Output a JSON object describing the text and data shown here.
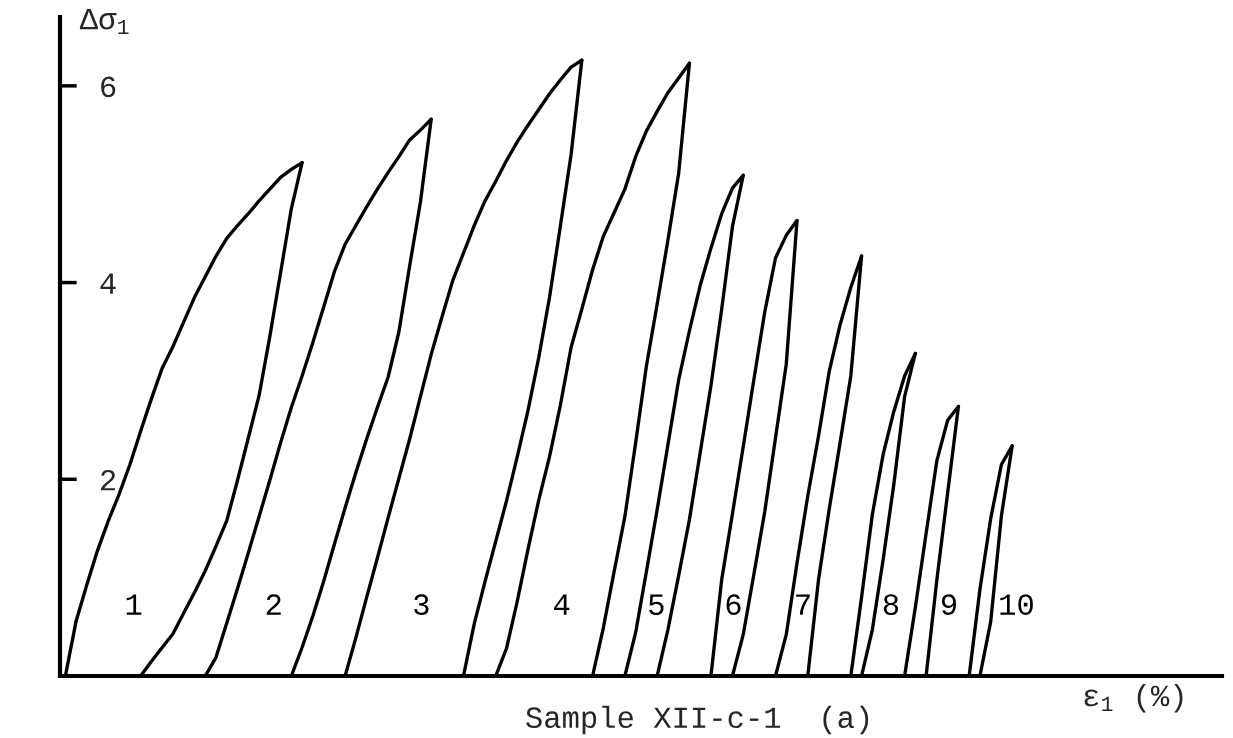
{
  "chart_data": {
    "type": "line",
    "ylabel": "Δσ$_{1}$",
    "xlabel": "ε$_{1}$ (%)",
    "annotations": [
      "Sample XII-c-1  (a)"
    ],
    "ylim": [
      0,
      6.7
    ],
    "yticks": [
      2,
      4,
      6
    ],
    "tick_labels": "y",
    "categories": [
      null,
      null,
      null,
      null,
      null,
      null,
      null,
      null,
      null,
      null,
      null,
      null,
      null,
      null,
      null,
      null,
      null,
      null,
      null,
      null,
      null,
      null,
      null,
      null,
      null,
      null,
      null,
      null,
      null,
      null,
      null,
      null,
      null,
      null,
      null,
      null,
      null,
      null,
      null,
      null,
      null,
      null,
      null,
      null,
      null,
      null,
      null,
      null,
      null,
      null,
      null,
      null,
      null,
      null,
      null,
      null,
      null,
      null,
      null,
      null,
      null,
      null,
      null,
      null,
      null,
      null,
      null,
      null,
      null,
      null,
      null,
      null,
      null,
      null,
      null,
      null,
      null,
      null,
      null,
      null,
      null,
      null,
      null,
      null,
      null,
      null,
      null,
      null,
      null,
      null,
      null,
      null,
      null,
      null,
      null,
      null,
      null,
      null,
      null,
      null,
      null,
      null,
      null,
      null,
      null,
      null,
      null,
      null
    ],
    "series": [
      {
        "name": "1",
        "color": "#000000",
        "values": [
          0,
          0.56,
          0.93,
          1.28,
          1.58,
          1.85,
          2.15,
          2.49,
          2.82,
          3.13,
          3.35,
          3.6,
          3.85,
          4.06,
          4.27,
          4.45,
          4.58,
          4.7,
          4.83,
          4.95,
          5.07,
          5.15,
          5.22,
          null,
          null,
          null,
          null,
          null,
          null,
          null,
          null,
          null,
          null,
          null,
          null,
          null,
          null,
          null,
          null,
          null,
          null,
          null,
          null,
          null,
          null,
          null,
          null,
          null,
          null,
          null,
          null,
          null,
          null,
          null,
          null,
          null,
          null,
          null,
          null,
          null,
          null,
          null,
          null,
          null,
          null,
          null,
          null,
          null,
          null,
          null,
          null,
          null,
          null,
          null,
          null,
          null,
          null,
          null,
          null,
          null,
          null,
          null,
          null,
          null,
          null,
          null,
          null,
          null,
          null,
          null,
          null,
          null,
          null,
          null,
          null,
          null,
          null,
          null,
          null,
          null,
          null,
          null,
          null,
          null,
          null,
          null,
          null,
          null
        ]
      },
      {
        "name": "2",
        "color": "#000000",
        "values": [
          null,
          null,
          null,
          null,
          null,
          null,
          null,
          null,
          null,
          null,
          null,
          null,
          null,
          0,
          0.19,
          0.54,
          0.89,
          1.25,
          1.62,
          1.99,
          2.37,
          2.73,
          3.05,
          3.39,
          3.75,
          4.11,
          4.39,
          4.58,
          4.77,
          4.95,
          5.12,
          5.28,
          5.45,
          5.55,
          5.66,
          null,
          null,
          null,
          null,
          null,
          null,
          null,
          null,
          null,
          null,
          null,
          null,
          null,
          null,
          null,
          null,
          null,
          null,
          null,
          null,
          null,
          null,
          null,
          null,
          null,
          null,
          null,
          null,
          null,
          null,
          null,
          null,
          null,
          null,
          null,
          null,
          null,
          null,
          null,
          null,
          null,
          null,
          null,
          null,
          null,
          null,
          null,
          null,
          null,
          null,
          null,
          null,
          null,
          null,
          null,
          null,
          null,
          null,
          null,
          null,
          null,
          null,
          null,
          null,
          null,
          null,
          null,
          null,
          null,
          null,
          null,
          null,
          null
        ]
      },
      {
        "name": "3",
        "color": "#000000",
        "values": [
          null,
          null,
          null,
          null,
          null,
          null,
          null,
          null,
          null,
          null,
          null,
          null,
          null,
          null,
          null,
          null,
          null,
          null,
          null,
          null,
          null,
          null,
          null,
          null,
          null,
          null,
          0,
          0.39,
          0.8,
          1.2,
          1.61,
          2.01,
          2.41,
          2.84,
          3.27,
          3.65,
          4.02,
          4.3,
          4.58,
          4.83,
          5.03,
          5.24,
          5.43,
          5.6,
          5.76,
          5.92,
          6.06,
          6.19,
          6.26,
          null,
          null,
          null,
          null,
          null,
          null,
          null,
          null,
          null,
          null,
          null,
          null,
          null,
          null,
          null,
          null,
          null,
          null,
          null,
          null,
          null,
          null,
          null,
          null,
          null,
          null,
          null,
          null,
          null,
          null,
          null,
          null,
          null,
          null,
          null,
          null,
          null,
          null,
          null,
          null,
          null,
          null,
          null,
          null,
          null,
          null,
          null,
          null,
          null,
          null,
          null,
          null,
          null,
          null,
          null,
          null,
          null,
          null,
          null
        ]
      },
      {
        "name": "4",
        "color": "#000000",
        "values": [
          null,
          null,
          null,
          null,
          null,
          null,
          null,
          null,
          null,
          null,
          null,
          null,
          null,
          null,
          null,
          null,
          null,
          null,
          null,
          null,
          null,
          null,
          null,
          null,
          null,
          null,
          null,
          null,
          null,
          null,
          null,
          null,
          null,
          null,
          null,
          null,
          null,
          null,
          null,
          null,
          0,
          0.28,
          0.76,
          1.29,
          1.79,
          2.23,
          2.75,
          3.34,
          3.73,
          4.13,
          4.47,
          4.71,
          4.95,
          5.28,
          5.54,
          5.74,
          5.93,
          6.08,
          6.23,
          null,
          null,
          null,
          null,
          null,
          null,
          null,
          null,
          null,
          null,
          null,
          null,
          null,
          null,
          null,
          null,
          null,
          null,
          null,
          null,
          null,
          null,
          null,
          null,
          null,
          null,
          null,
          null,
          null,
          null,
          null,
          null,
          null,
          null,
          null,
          null,
          null,
          null,
          null,
          null,
          null,
          null,
          null,
          null,
          null,
          null,
          null,
          null,
          null
        ]
      },
      {
        "name": "5",
        "color": "#000000",
        "values": [
          null,
          null,
          null,
          null,
          null,
          null,
          null,
          null,
          null,
          null,
          null,
          null,
          null,
          null,
          null,
          null,
          null,
          null,
          null,
          null,
          null,
          null,
          null,
          null,
          null,
          null,
          null,
          null,
          null,
          null,
          null,
          null,
          null,
          null,
          null,
          null,
          null,
          null,
          null,
          null,
          null,
          null,
          null,
          null,
          null,
          null,
          null,
          null,
          null,
          null,
          null,
          null,
          0,
          0.44,
          1.06,
          1.69,
          2.35,
          3.01,
          3.51,
          3.97,
          4.35,
          4.7,
          4.96,
          5.09,
          null,
          null,
          null,
          null,
          null,
          null,
          null,
          null,
          null,
          null,
          null,
          null,
          null,
          null,
          null,
          null,
          null,
          null,
          null,
          null,
          null,
          null,
          null,
          null,
          null,
          null,
          null,
          null,
          null,
          null,
          null,
          null,
          null,
          null,
          null,
          null,
          null,
          null,
          null,
          null,
          null,
          null,
          null,
          null
        ]
      },
      {
        "name": "6",
        "color": "#000000",
        "values": [
          null,
          null,
          null,
          null,
          null,
          null,
          null,
          null,
          null,
          null,
          null,
          null,
          null,
          null,
          null,
          null,
          null,
          null,
          null,
          null,
          null,
          null,
          null,
          null,
          null,
          null,
          null,
          null,
          null,
          null,
          null,
          null,
          null,
          null,
          null,
          null,
          null,
          null,
          null,
          null,
          null,
          null,
          null,
          null,
          null,
          null,
          null,
          null,
          null,
          null,
          null,
          null,
          null,
          null,
          null,
          null,
          null,
          null,
          null,
          null,
          0,
          0.98,
          1.65,
          2.33,
          3.02,
          3.7,
          4.25,
          4.48,
          4.63,
          null,
          null,
          null,
          null,
          null,
          null,
          null,
          null,
          null,
          null,
          null,
          null,
          null,
          null,
          null,
          null,
          null,
          null,
          null,
          null,
          null,
          null,
          null,
          null,
          null,
          null,
          null,
          null,
          null,
          null,
          null,
          null,
          null,
          null,
          null,
          null,
          null,
          null,
          null
        ]
      },
      {
        "name": "7",
        "color": "#000000",
        "values": [
          null,
          null,
          null,
          null,
          null,
          null,
          null,
          null,
          null,
          null,
          null,
          null,
          null,
          null,
          null,
          null,
          null,
          null,
          null,
          null,
          null,
          null,
          null,
          null,
          null,
          null,
          null,
          null,
          null,
          null,
          null,
          null,
          null,
          null,
          null,
          null,
          null,
          null,
          null,
          null,
          null,
          null,
          null,
          null,
          null,
          null,
          null,
          null,
          null,
          null,
          null,
          null,
          null,
          null,
          null,
          null,
          null,
          null,
          null,
          null,
          null,
          null,
          null,
          null,
          null,
          null,
          0,
          0.42,
          1.15,
          1.83,
          2.44,
          3.1,
          3.57,
          3.95,
          4.27,
          null,
          null,
          null,
          null,
          null,
          null,
          null,
          null,
          null,
          null,
          null,
          null,
          null,
          null,
          null,
          null,
          null,
          null,
          null,
          null,
          null,
          null,
          null,
          null,
          null,
          null,
          null,
          null,
          null,
          null,
          null,
          null,
          null
        ]
      },
      {
        "name": "8",
        "color": "#000000",
        "values": [
          null,
          null,
          null,
          null,
          null,
          null,
          null,
          null,
          null,
          null,
          null,
          null,
          null,
          null,
          null,
          null,
          null,
          null,
          null,
          null,
          null,
          null,
          null,
          null,
          null,
          null,
          null,
          null,
          null,
          null,
          null,
          null,
          null,
          null,
          null,
          null,
          null,
          null,
          null,
          null,
          null,
          null,
          null,
          null,
          null,
          null,
          null,
          null,
          null,
          null,
          null,
          null,
          null,
          null,
          null,
          null,
          null,
          null,
          null,
          null,
          null,
          null,
          null,
          null,
          null,
          null,
          null,
          null,
          null,
          null,
          null,
          null,
          null,
          0,
          0.8,
          1.64,
          2.25,
          2.69,
          3.05,
          3.28,
          null,
          null,
          null,
          null,
          null,
          null,
          null,
          null,
          null,
          null,
          null,
          null,
          null,
          null,
          null,
          null,
          null,
          null,
          null,
          null,
          null,
          null,
          null,
          null,
          null,
          null,
          null,
          null
        ]
      },
      {
        "name": "9",
        "color": "#000000",
        "values": [
          null,
          null,
          null,
          null,
          null,
          null,
          null,
          null,
          null,
          null,
          null,
          null,
          null,
          null,
          null,
          null,
          null,
          null,
          null,
          null,
          null,
          null,
          null,
          null,
          null,
          null,
          null,
          null,
          null,
          null,
          null,
          null,
          null,
          null,
          null,
          null,
          null,
          null,
          null,
          null,
          null,
          null,
          null,
          null,
          null,
          null,
          null,
          null,
          null,
          null,
          null,
          null,
          null,
          null,
          null,
          null,
          null,
          null,
          null,
          null,
          null,
          null,
          null,
          null,
          null,
          null,
          null,
          null,
          null,
          null,
          null,
          null,
          null,
          null,
          null,
          null,
          null,
          null,
          0,
          0.7,
          1.45,
          2.19,
          2.6,
          2.74,
          null,
          null,
          null,
          null,
          null,
          null,
          null,
          null,
          null,
          null,
          null,
          null,
          null,
          null,
          null,
          null,
          null,
          null,
          null,
          null,
          null,
          null,
          null,
          null
        ]
      },
      {
        "name": "10",
        "color": "#000000",
        "values": [
          null,
          null,
          null,
          null,
          null,
          null,
          null,
          null,
          null,
          null,
          null,
          null,
          null,
          null,
          null,
          null,
          null,
          null,
          null,
          null,
          null,
          null,
          null,
          null,
          null,
          null,
          null,
          null,
          null,
          null,
          null,
          null,
          null,
          null,
          null,
          null,
          null,
          null,
          null,
          null,
          null,
          null,
          null,
          null,
          null,
          null,
          null,
          null,
          null,
          null,
          null,
          null,
          null,
          null,
          null,
          null,
          null,
          null,
          null,
          null,
          null,
          null,
          null,
          null,
          null,
          null,
          null,
          null,
          null,
          null,
          null,
          null,
          null,
          null,
          null,
          null,
          null,
          null,
          null,
          null,
          null,
          null,
          null,
          null,
          0,
          0.88,
          1.6,
          2.15,
          2.34,
          null,
          null,
          null,
          null,
          null,
          null,
          null,
          null,
          null,
          null,
          null,
          null,
          null,
          null,
          null,
          null,
          null,
          null,
          null
        ]
      },
      {
        "color": "#000000",
        "values": [
          null,
          null,
          null,
          null,
          null,
          null,
          null,
          0,
          0.15,
          0.29,
          0.43,
          0.64,
          0.85,
          1.07,
          1.32,
          1.58,
          1.99,
          2.42,
          2.85,
          3.45,
          4.1,
          4.75,
          5.22,
          null,
          null,
          null,
          null,
          null,
          null,
          null,
          null,
          null,
          null,
          null,
          null,
          null,
          null,
          0,
          0.53,
          0.96,
          1.37,
          1.78,
          2.23,
          2.7,
          3.24,
          3.85,
          4.57,
          5.3,
          6.26,
          null,
          null,
          null,
          null,
          null,
          null,
          0,
          0.47,
          1.02,
          1.59,
          2.27,
          2.95,
          3.73,
          4.57,
          5.09,
          null,
          null,
          null,
          null,
          null,
          0,
          0.98,
          1.7,
          2.37,
          3.05,
          4.27,
          null,
          null,
          null,
          null,
          null,
          0,
          0.98,
          1.86,
          2.74,
          null,
          null,
          null,
          null,
          null,
          null,
          null,
          null,
          null,
          null,
          null,
          null,
          null,
          null,
          null,
          null,
          null,
          null,
          null,
          null,
          null,
          null,
          null,
          null
        ]
      },
      {
        "color": "#000000",
        "values": [
          null,
          null,
          null,
          null,
          null,
          null,
          null,
          null,
          null,
          null,
          null,
          null,
          null,
          null,
          null,
          null,
          null,
          null,
          null,
          null,
          null,
          0,
          0.29,
          0.61,
          0.96,
          1.34,
          1.71,
          2.07,
          2.41,
          2.73,
          3.04,
          3.5,
          4.17,
          4.82,
          5.66,
          null,
          null,
          null,
          null,
          null,
          null,
          null,
          null,
          null,
          null,
          null,
          null,
          null,
          null,
          0,
          0.49,
          1.06,
          1.62,
          2.37,
          3.15,
          3.78,
          4.43,
          5.11,
          6.23,
          null,
          null,
          null,
          0,
          0.42,
          1.04,
          1.67,
          2.42,
          3.17,
          4.63,
          null,
          null,
          null,
          null,
          null,
          0,
          0.47,
          1.18,
          1.95,
          2.84,
          3.28,
          null,
          null,
          null,
          null,
          null,
          0,
          0.55,
          1.63,
          2.34,
          null,
          null,
          null,
          null,
          null,
          null,
          null,
          null,
          null,
          null,
          null,
          null,
          null,
          null,
          null,
          null,
          null,
          null,
          null
        ]
      }
    ]
  }
}
